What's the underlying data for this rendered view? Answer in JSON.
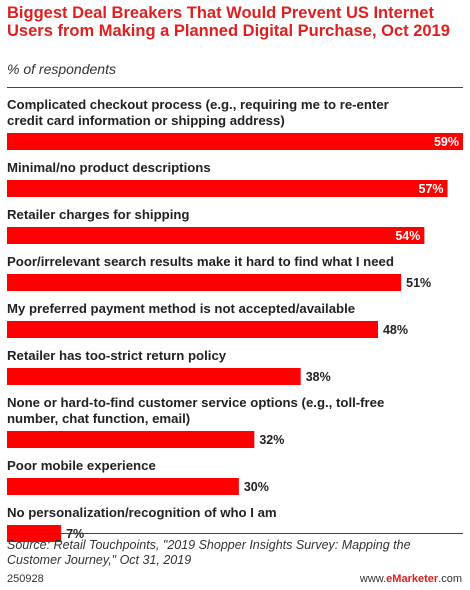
{
  "header": {
    "title": "Biggest Deal Breakers That Would Prevent US Internet Users from Making a Planned Digital Purchase, Oct 2019",
    "subtitle": "% of respondents"
  },
  "chart_data": {
    "type": "bar",
    "orientation": "horizontal",
    "title": "Biggest Deal Breakers That Would Prevent US Internet Users from Making a Planned Digital Purchase, Oct 2019",
    "subtitle": "% of respondents",
    "categories": [
      [
        "Complicated checkout process (e.g., requiring me to re-enter",
        "credit card information or shipping address)"
      ],
      [
        "Minimal/no product descriptions"
      ],
      [
        "Retailer charges for shipping"
      ],
      [
        "Poor/irrelevant search results make it hard to find what I need"
      ],
      [
        "My preferred payment method is not accepted/available"
      ],
      [
        "Retailer has too-strict return policy"
      ],
      [
        "None or hard-to-find customer service options (e.g., toll-free",
        "number, chat function, email)"
      ],
      [
        "Poor mobile experience"
      ],
      [
        "No personalization/recognition of who I am"
      ]
    ],
    "values": [
      59,
      57,
      54,
      51,
      48,
      38,
      32,
      30,
      7
    ],
    "value_labels": [
      "59%",
      "57%",
      "54%",
      "51%",
      "48%",
      "38%",
      "32%",
      "30%",
      "7%"
    ],
    "xlim": [
      0,
      59
    ],
    "bar_color": "#ff0000",
    "grid": false,
    "legend": "none"
  },
  "footer": {
    "source": "Source: Retail Touchpoints, \"2019 Shopper Insights Survey: Mapping the Customer Journey,\" Oct 31, 2019",
    "id": "250928",
    "brand_prefix": "www.",
    "brand_name": "eMarketer",
    "brand_suffix": ".com"
  }
}
